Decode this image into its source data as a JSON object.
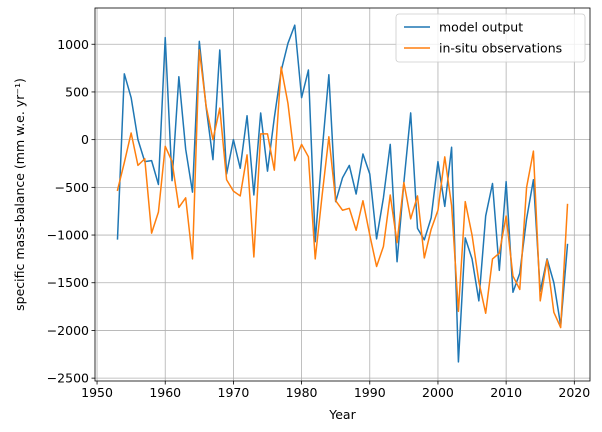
{
  "chart_data": {
    "type": "line",
    "xlabel": "Year",
    "ylabel": "specific mass-balance (mm w.e. yr⁻¹)",
    "xlim": [
      1949.7,
      2022.3
    ],
    "ylim": [
      -2530,
      1380
    ],
    "grid": true,
    "legend_position": "top-right",
    "xticks": [
      1950,
      1960,
      1970,
      1980,
      1990,
      2000,
      2010,
      2020
    ],
    "xtick_labels": [
      "1950",
      "1960",
      "1970",
      "1980",
      "1990",
      "2000",
      "2010",
      "2020"
    ],
    "yticks": [
      -2500,
      -2000,
      -1500,
      -1000,
      -500,
      0,
      500,
      1000
    ],
    "ytick_labels": [
      "−2500",
      "−2000",
      "−1500",
      "−1000",
      "−500",
      "0",
      "500",
      "1000"
    ],
    "x": [
      1953,
      1954,
      1955,
      1956,
      1957,
      1958,
      1959,
      1960,
      1961,
      1962,
      1963,
      1964,
      1965,
      1966,
      1967,
      1968,
      1969,
      1970,
      1971,
      1972,
      1973,
      1974,
      1975,
      1976,
      1977,
      1978,
      1979,
      1980,
      1981,
      1982,
      1983,
      1984,
      1985,
      1986,
      1987,
      1988,
      1989,
      1990,
      1991,
      1992,
      1993,
      1994,
      1995,
      1996,
      1997,
      1998,
      1999,
      2000,
      2001,
      2002,
      2003,
      2004,
      2005,
      2006,
      2007,
      2008,
      2009,
      2010,
      2011,
      2012,
      2013,
      2014,
      2015,
      2016,
      2017,
      2018,
      2019
    ],
    "series": [
      {
        "name": "model output",
        "color": "#1f77b4",
        "values": [
          -1040,
          690,
          440,
          0,
          -230,
          -220,
          -470,
          1070,
          -430,
          660,
          -100,
          -550,
          1030,
          340,
          -210,
          940,
          -360,
          0,
          -300,
          250,
          -580,
          280,
          -330,
          230,
          720,
          1010,
          1200,
          440,
          730,
          -1070,
          -130,
          680,
          -650,
          -400,
          -270,
          -570,
          -150,
          -360,
          -1040,
          -610,
          -50,
          -1280,
          -450,
          280,
          -930,
          -1050,
          -820,
          -230,
          -700,
          -80,
          -2330,
          -1030,
          -1250,
          -1690,
          -800,
          -460,
          -1370,
          -440,
          -1600,
          -1400,
          -830,
          -420,
          -1590,
          -1250,
          -1500,
          -1950,
          -1100
        ]
      },
      {
        "name": "in-situ observations",
        "color": "#ff7f0e",
        "values": [
          -530,
          -240,
          70,
          -270,
          -200,
          -980,
          -760,
          -70,
          -230,
          -710,
          -610,
          -1250,
          940,
          350,
          0,
          330,
          -420,
          -540,
          -590,
          -160,
          -1230,
          60,
          60,
          -320,
          760,
          380,
          -220,
          -50,
          -180,
          -1250,
          -590,
          30,
          -640,
          -740,
          -720,
          -950,
          -640,
          -1000,
          -1330,
          -1120,
          -580,
          -1080,
          -450,
          -830,
          -590,
          -1240,
          -940,
          -740,
          -180,
          -690,
          -1800,
          -650,
          -1000,
          -1490,
          -1820,
          -1250,
          -1190,
          -800,
          -1430,
          -1570,
          -500,
          -120,
          -1690,
          -1260,
          -1810,
          -1970,
          -680
        ]
      }
    ]
  }
}
